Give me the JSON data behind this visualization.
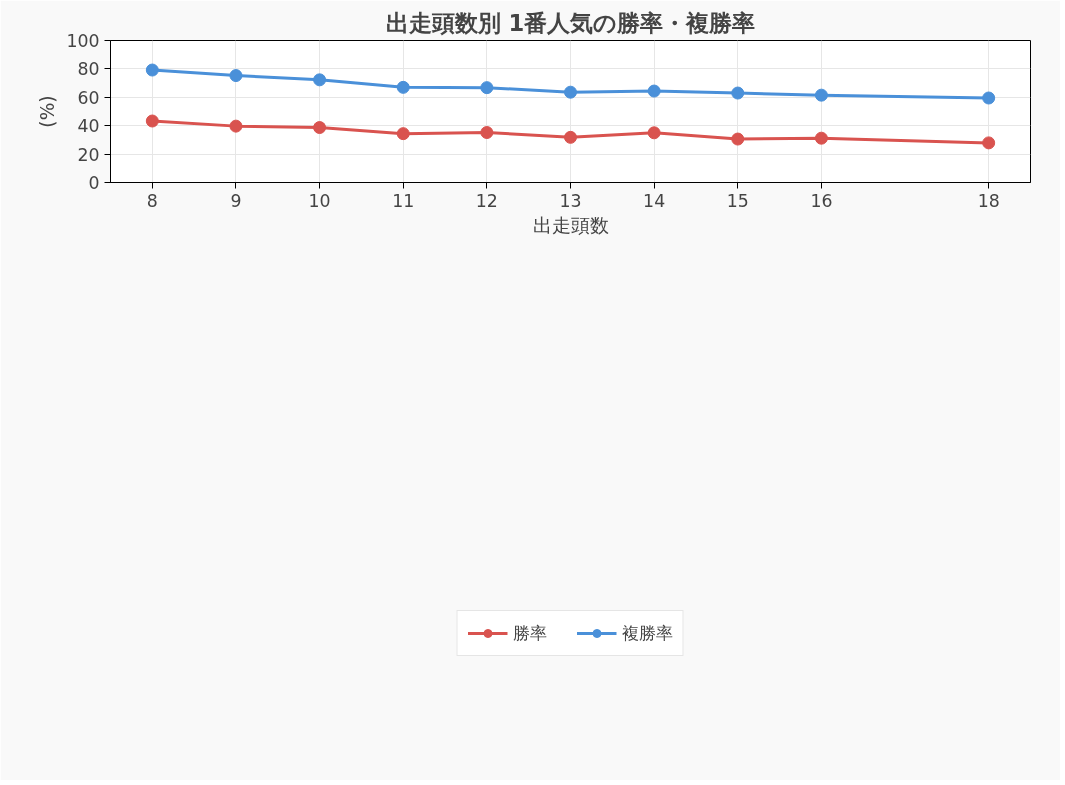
{
  "chart_data": {
    "type": "line",
    "title": "出走頭数別 1番人気の勝率・複勝率",
    "xlabel": "出走頭数",
    "ylabel": "(%)",
    "x": [
      8,
      9,
      10,
      11,
      12,
      13,
      14,
      15,
      16,
      18
    ],
    "series": [
      {
        "name": "勝率",
        "color": "#d9534f",
        "values": [
          43.3,
          39.7,
          38.7,
          34.4,
          35.2,
          31.8,
          35.0,
          30.6,
          31.2,
          27.9
        ]
      },
      {
        "name": "複勝率",
        "color": "#4a90d9",
        "values": [
          79.2,
          75.3,
          72.3,
          67.0,
          66.8,
          63.6,
          64.4,
          63.0,
          61.5,
          59.5
        ]
      }
    ],
    "xlim": [
      7.5,
      18.5
    ],
    "xticks": [
      8,
      9,
      10,
      11,
      12,
      13,
      14,
      15,
      16,
      18
    ],
    "ylim": [
      0,
      100
    ],
    "yticks": [
      0,
      20,
      40,
      60,
      80,
      100
    ],
    "grid": true,
    "legend": "bottom",
    "marker": "circle",
    "line_style": "solid"
  }
}
